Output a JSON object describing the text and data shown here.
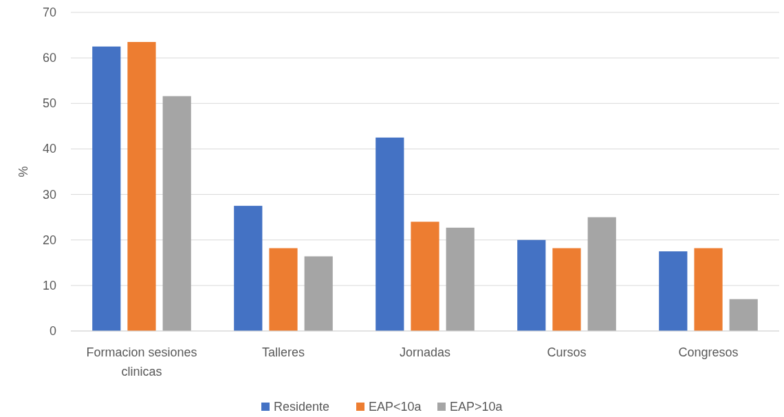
{
  "chart_data": {
    "type": "bar",
    "ylabel": "%",
    "categories": [
      "Formacion sesiones clinicas",
      "Talleres",
      "Jornadas",
      "Cursos",
      "Congresos"
    ],
    "series": [
      {
        "name": "Residente",
        "color": "#4472c4",
        "values": [
          62.5,
          27.5,
          42.5,
          20,
          17.5
        ]
      },
      {
        "name": "EAP<10a",
        "color": "#ed7d31",
        "values": [
          63.5,
          18.2,
          24,
          18.2,
          18.2
        ]
      },
      {
        "name": "EAP>10a",
        "color": "#a5a5a5",
        "values": [
          51.6,
          16.4,
          22.7,
          25,
          7
        ]
      }
    ],
    "ylim": [
      0,
      70
    ],
    "yticks": [
      0,
      10,
      20,
      30,
      40,
      50,
      60,
      70
    ],
    "grid": "y",
    "legend": "bottom"
  }
}
